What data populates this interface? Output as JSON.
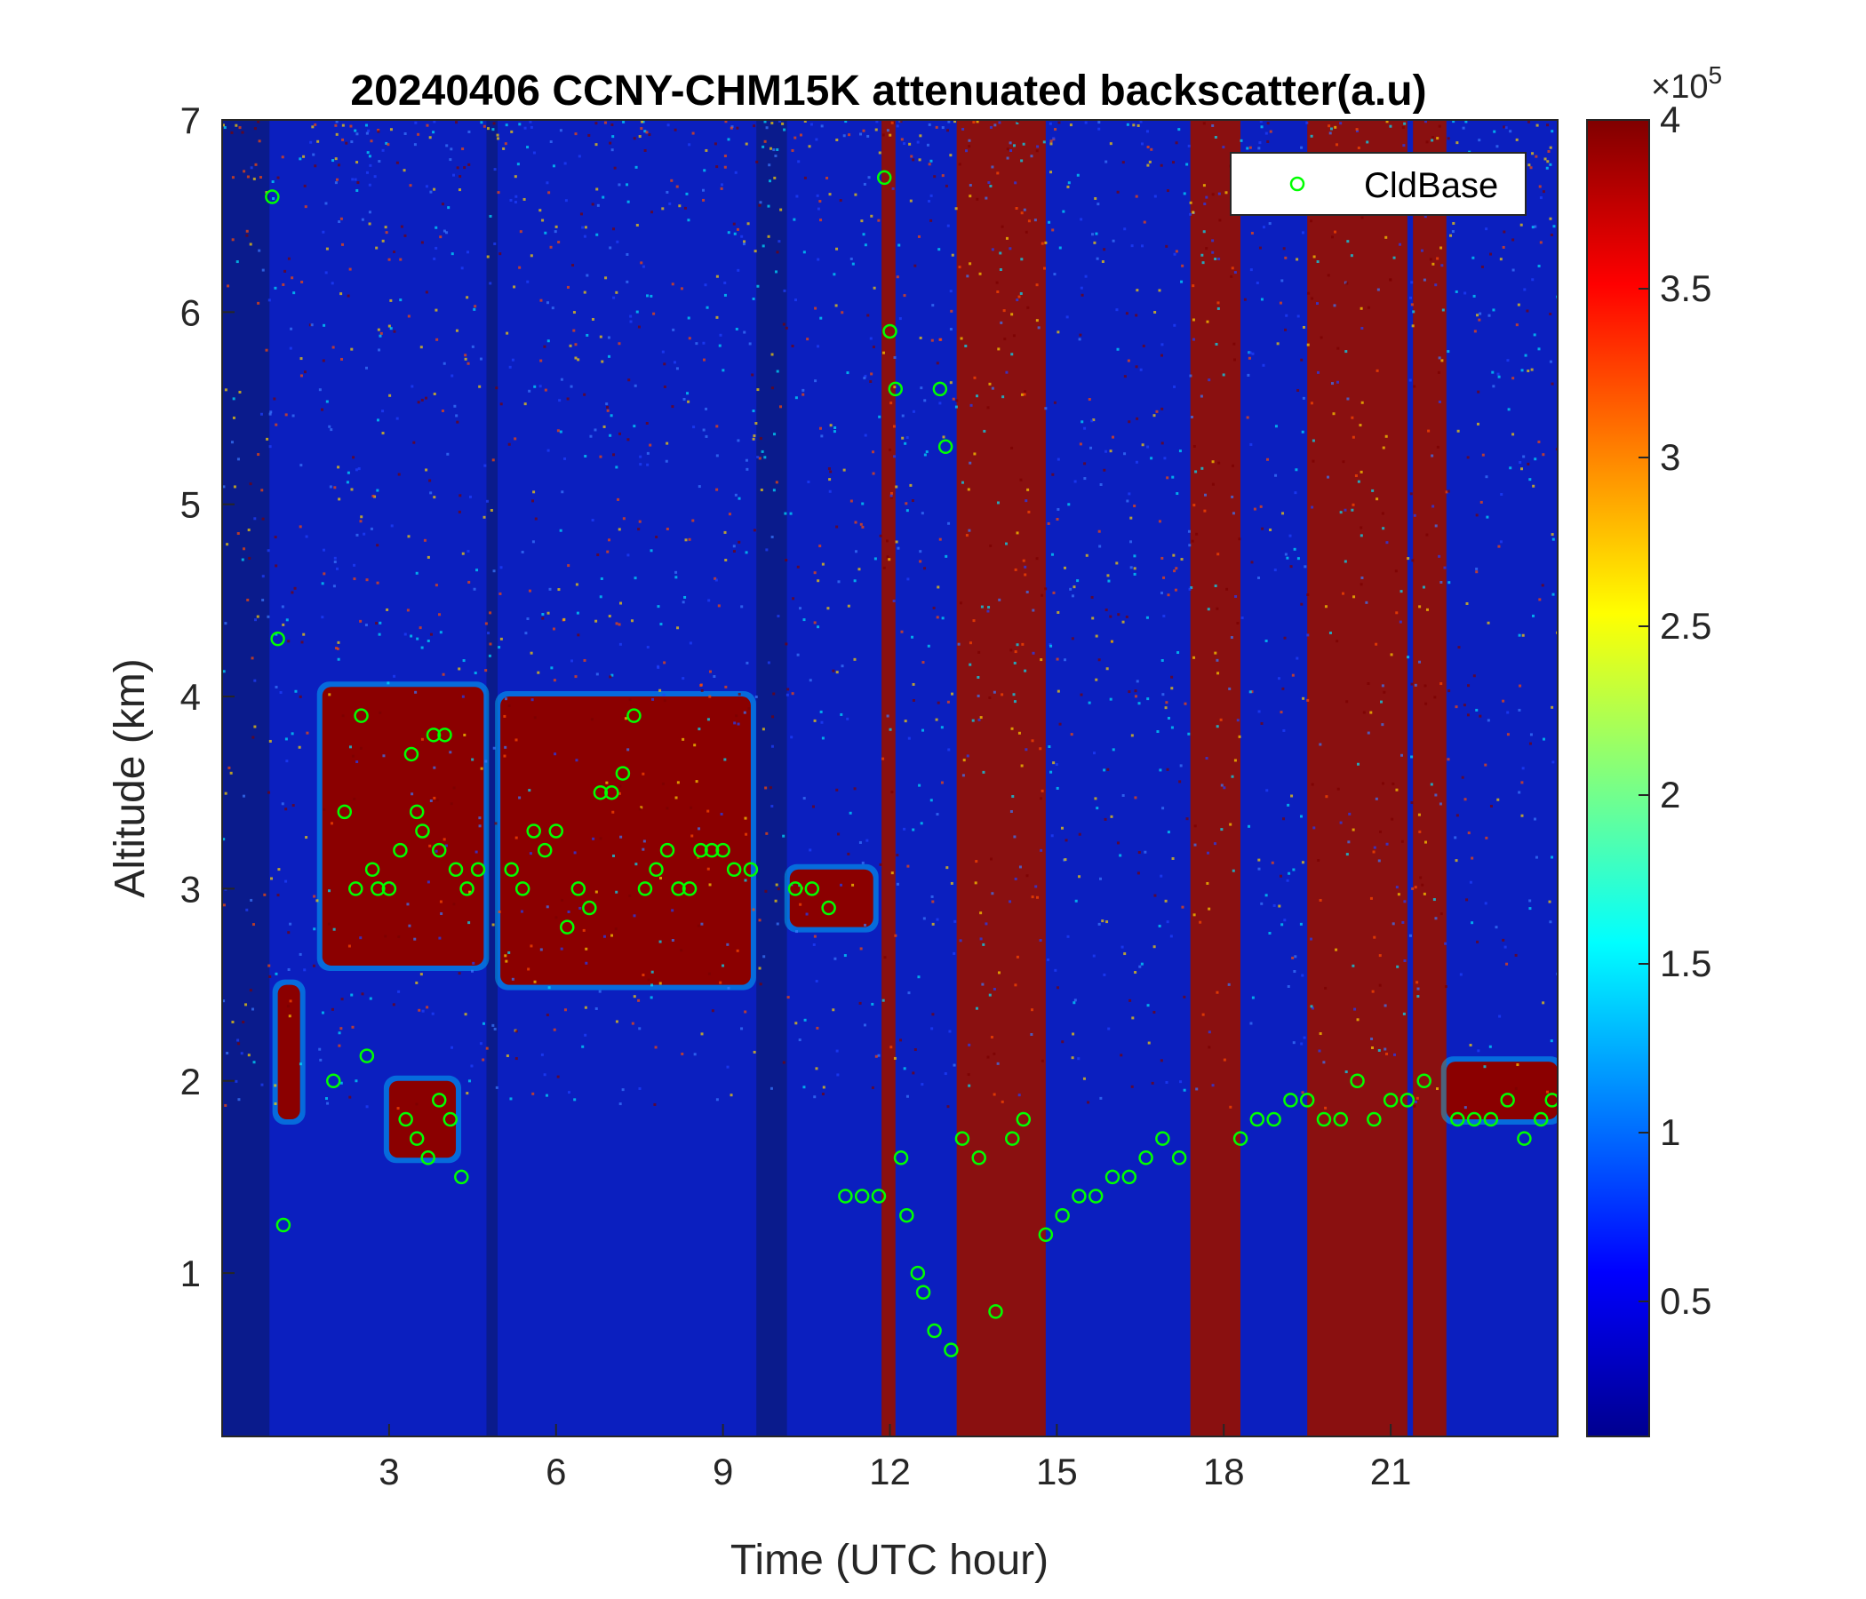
{
  "chart_data": {
    "type": "heatmap",
    "title": "20240406 CCNY-CHM15K attenuated backscatter(a.u)",
    "xlabel": "Time (UTC hour)",
    "ylabel": "Altitude (km)",
    "xlim": [
      0,
      24
    ],
    "ylim": [
      0.15,
      7
    ],
    "x_ticks": [
      3,
      6,
      9,
      12,
      15,
      18,
      21
    ],
    "x_tick_labels": [
      "3",
      "6",
      "9",
      "12",
      "15",
      "18",
      "21"
    ],
    "y_ticks": [
      1,
      2,
      3,
      4,
      5,
      6,
      7
    ],
    "y_tick_labels": [
      "1",
      "2",
      "3",
      "4",
      "5",
      "6",
      "7"
    ],
    "colorbar": {
      "range": [
        10000,
        400000
      ],
      "ticks": [
        0.5,
        1,
        1.5,
        2,
        2.5,
        3,
        3.5,
        4
      ],
      "tick_labels": [
        "0.5",
        "1",
        "1.5",
        "2",
        "2.5",
        "3",
        "3.5",
        "4"
      ],
      "exponent_label": "×10",
      "exponent_power": "5",
      "colormap": "jet"
    },
    "legend": {
      "entries": [
        "CldBase"
      ],
      "placement": "top-right"
    },
    "series": [
      {
        "name": "CldBase",
        "marker": "open-circle",
        "color": "#00ff00",
        "x": [
          0.9,
          1.0,
          1.1,
          2.0,
          2.2,
          2.4,
          2.5,
          2.7,
          2.8,
          3.0,
          3.2,
          3.4,
          3.5,
          3.6,
          3.8,
          3.9,
          4.0,
          4.2,
          4.4,
          4.6,
          2.6,
          3.3,
          3.5,
          3.7,
          3.9,
          4.1,
          4.3,
          5.2,
          5.4,
          5.6,
          5.8,
          6.0,
          6.2,
          6.4,
          6.6,
          6.8,
          7.0,
          7.2,
          7.4,
          7.6,
          7.8,
          8.0,
          8.2,
          8.4,
          8.6,
          8.8,
          9.0,
          9.2,
          9.5,
          10.3,
          10.6,
          10.9,
          11.2,
          11.5,
          11.8,
          11.9,
          12.0,
          12.1,
          12.2,
          12.5,
          12.8,
          12.9,
          13.0,
          12.3,
          12.6,
          13.1,
          13.3,
          13.6,
          13.9,
          14.2,
          14.4,
          14.8,
          15.1,
          15.4,
          15.7,
          16.0,
          16.3,
          16.6,
          16.9,
          17.2,
          18.3,
          18.6,
          18.9,
          19.2,
          19.5,
          19.8,
          20.1,
          20.4,
          20.7,
          21.0,
          21.3,
          21.6,
          22.2,
          22.5,
          22.8,
          23.1,
          23.4,
          23.7,
          23.9
        ],
        "y": [
          6.6,
          4.3,
          1.25,
          2.0,
          3.4,
          3.0,
          3.9,
          3.1,
          3.0,
          3.0,
          3.2,
          3.7,
          3.4,
          3.3,
          3.8,
          3.2,
          3.8,
          3.1,
          3.0,
          3.1,
          2.13,
          1.8,
          1.7,
          1.6,
          1.9,
          1.8,
          1.5,
          3.1,
          3.0,
          3.3,
          3.2,
          3.3,
          2.8,
          3.0,
          2.9,
          3.5,
          3.5,
          3.6,
          3.9,
          3.0,
          3.1,
          3.2,
          3.0,
          3.0,
          3.2,
          3.2,
          3.2,
          3.1,
          3.1,
          3.0,
          3.0,
          2.9,
          1.4,
          1.4,
          1.4,
          6.7,
          5.9,
          5.6,
          1.6,
          1.0,
          0.7,
          5.6,
          5.3,
          1.3,
          0.9,
          0.6,
          1.7,
          1.6,
          0.8,
          1.7,
          1.8,
          1.2,
          1.3,
          1.4,
          1.4,
          1.5,
          1.5,
          1.6,
          1.7,
          1.6,
          1.7,
          1.8,
          1.8,
          1.9,
          1.9,
          1.8,
          1.8,
          2.0,
          1.8,
          1.9,
          1.9,
          2.0,
          1.8,
          1.8,
          1.8,
          1.9,
          1.7,
          1.8,
          1.9
        ]
      }
    ],
    "regions": [
      {
        "x0": 0,
        "x1": 0.85,
        "level": "low"
      },
      {
        "x0": 4.75,
        "x1": 4.95,
        "level": "low"
      },
      {
        "x0": 9.6,
        "x1": 10.15,
        "level": "low"
      },
      {
        "x0": 11.85,
        "x1": 12.1,
        "level": "high"
      },
      {
        "x0": 13.2,
        "x1": 14.8,
        "level": "high"
      },
      {
        "x0": 17.4,
        "x1": 18.3,
        "level": "high"
      },
      {
        "x0": 19.5,
        "x1": 21.3,
        "level": "high"
      },
      {
        "x0": 21.4,
        "x1": 22.0,
        "level": "high"
      }
    ],
    "cloud_layers": [
      {
        "x0": 1.8,
        "x1": 4.7,
        "y0": 2.6,
        "y1": 4.05
      },
      {
        "x0": 5.0,
        "x1": 9.5,
        "y0": 2.5,
        "y1": 4.0
      },
      {
        "x0": 10.2,
        "x1": 11.7,
        "y0": 2.8,
        "y1": 3.1
      },
      {
        "x0": 1.0,
        "x1": 1.4,
        "y0": 1.8,
        "y1": 2.5
      },
      {
        "x0": 3.0,
        "x1": 4.2,
        "y0": 1.6,
        "y1": 2.0
      },
      {
        "x0": 22.0,
        "x1": 24.0,
        "y0": 1.8,
        "y1": 2.1
      }
    ]
  }
}
